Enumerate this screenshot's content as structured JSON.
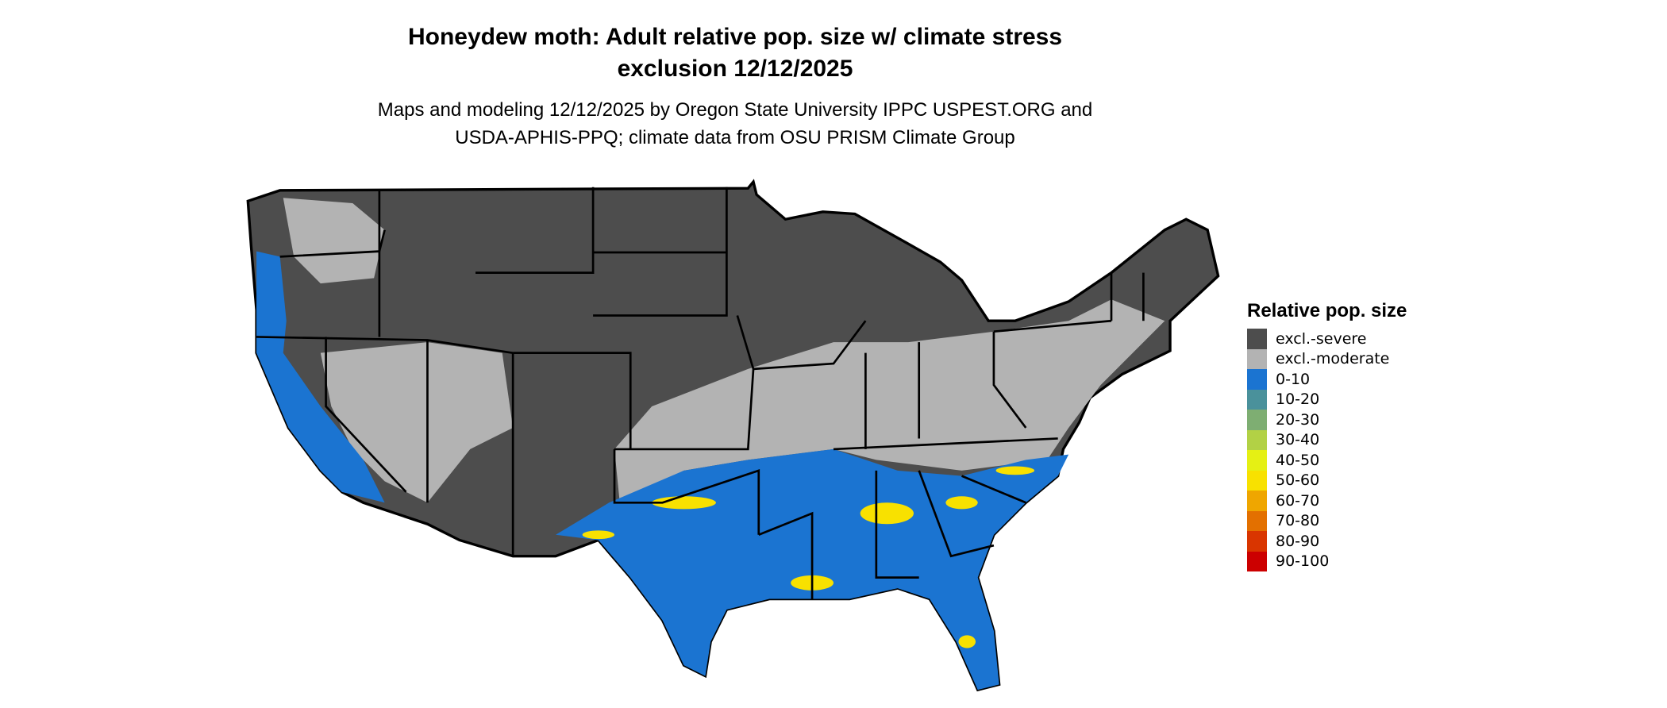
{
  "title": {
    "line1": "Honeydew moth: Adult relative pop. size w/ climate stress",
    "line2": "exclusion 12/12/2025"
  },
  "subtitle": {
    "line1": "Maps and modeling 12/12/2025 by Oregon State University IPPC USPEST.ORG and",
    "line2": "USDA-APHIS-PPQ; climate data from OSU PRISM Climate Group"
  },
  "legend": {
    "title": "Relative pop. size",
    "items": [
      {
        "label": "excl.-severe",
        "color": "#4d4d4d"
      },
      {
        "label": "excl.-moderate",
        "color": "#b3b3b3"
      },
      {
        "label": "0-10",
        "color": "#1b74d1"
      },
      {
        "label": "10-20",
        "color": "#4a919b"
      },
      {
        "label": "20-30",
        "color": "#7eae72"
      },
      {
        "label": "30-40",
        "color": "#b2d145"
      },
      {
        "label": "40-50",
        "color": "#e5f014"
      },
      {
        "label": "50-60",
        "color": "#f8e100"
      },
      {
        "label": "60-70",
        "color": "#efa600"
      },
      {
        "label": "70-80",
        "color": "#e37000"
      },
      {
        "label": "80-90",
        "color": "#d93500"
      },
      {
        "label": "90-100",
        "color": "#cc0000"
      }
    ]
  }
}
